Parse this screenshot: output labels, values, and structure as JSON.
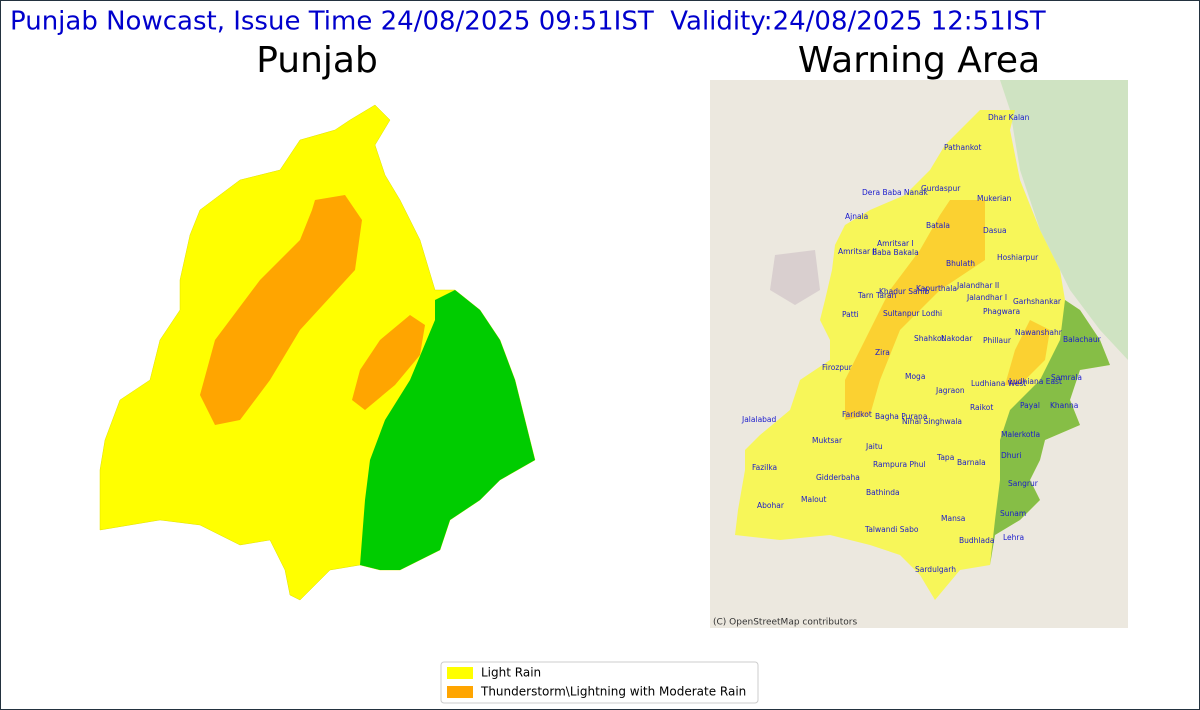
{
  "header": {
    "title": "Punjab Nowcast, Issue Time 24/08/2025 09:51IST  Validity:24/08/2025 12:51IST"
  },
  "panels": [
    {
      "title": "Punjab"
    },
    {
      "title": "Warning Area"
    }
  ],
  "map": {
    "places": [
      "Dhar Kalan",
      "Pathankot",
      "Gurdaspur",
      "Dera Baba Nanak",
      "Mukerian",
      "Ajnala",
      "Batala",
      "Dasua",
      "Amritsar I",
      "Amritsar II",
      "Baba Bakala",
      "Bhulath",
      "Hoshiarpur",
      "Khadur Sahib",
      "Kapurthala",
      "Jalandhar II",
      "Tarn Taran",
      "Jalandhar I",
      "Garhshankar",
      "Patti",
      "Sultanpur Lodhi",
      "Phagwara",
      "Nawanshahr",
      "Balachaur",
      "Shahkot",
      "Nakodar",
      "Phillaur",
      "Zira",
      "Firozpur",
      "Moga",
      "Ludhiana West",
      "Ludhiana East",
      "Samrala",
      "Jagraon",
      "Faridkot",
      "Bagha Purana",
      "Nihal Singhwala",
      "Raikot",
      "Payal",
      "Khanna",
      "Jalalabad",
      "Malerkotla",
      "Muktsar",
      "Jaitu",
      "Dhuri",
      "Fazilka",
      "Tapa",
      "Rampura Phul",
      "Barnala",
      "Gidderbaha",
      "Sangrur",
      "Bathinda",
      "Malout",
      "Abohar",
      "Sunam",
      "Talwandi Sabo",
      "Mansa",
      "Lehra",
      "Budhlada",
      "Sardulgarh"
    ],
    "attribution": "(C) OpenStreetMap contributors"
  },
  "legend": {
    "items": [
      {
        "label": "Light Rain",
        "color": "#ffff00"
      },
      {
        "label": "Thunderstorm\\Lightning with Moderate Rain",
        "color": "#ffa500"
      }
    ]
  }
}
